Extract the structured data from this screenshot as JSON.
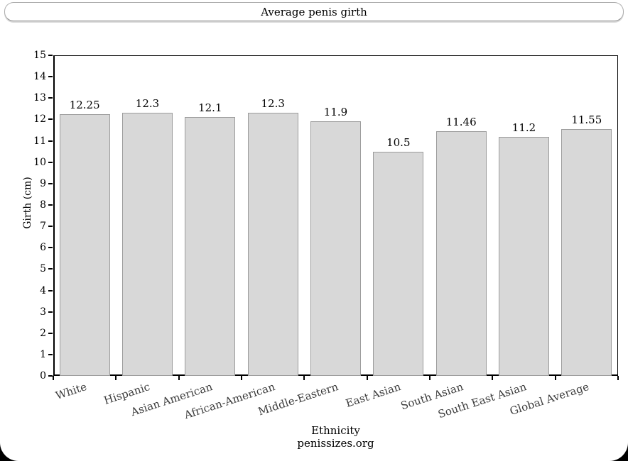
{
  "window": {
    "title": "Average penis girth"
  },
  "chart_data": {
    "type": "bar",
    "title": "Average penis girth",
    "categories": [
      "White",
      "Hispanic",
      "Asian American",
      "African-American",
      "Middle-Eastern",
      "East Asian",
      "South Asian",
      "South East Asian",
      "Global Average"
    ],
    "values": [
      12.25,
      12.3,
      12.1,
      12.3,
      11.9,
      10.5,
      11.46,
      11.2,
      11.55
    ],
    "value_labels": [
      "12.25",
      "12.3",
      "12.1",
      "12.3",
      "11.9",
      "10.5",
      "11.46",
      "11.2",
      "11.55"
    ],
    "xlabel": "Ethnicity",
    "ylabel": "Girth (cm)",
    "source": "penissizes.org",
    "ylim": [
      0,
      15
    ],
    "ytick_step": 1,
    "grid": false,
    "legend_position": "none",
    "bar_fill": "#d8d8d8",
    "bar_border": "#9c9c9c",
    "axis_color": "#000000"
  }
}
